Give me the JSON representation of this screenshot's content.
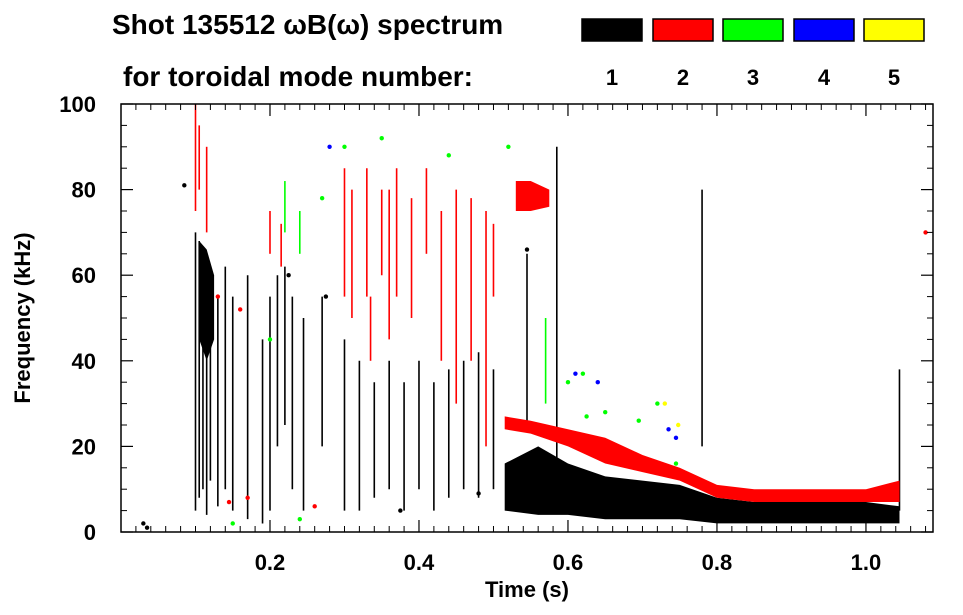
{
  "chart_data": {
    "type": "spectrogram",
    "title": "Shot 135512 ωB(ω) spectrum",
    "legend_caption": "for toroidal mode number:",
    "xlabel": "Time (s)",
    "ylabel": "Frequency (kHz)",
    "xlim": [
      0.0,
      1.09
    ],
    "ylim": [
      0,
      100
    ],
    "xticks": [
      0.2,
      0.4,
      0.6,
      0.8,
      1.0
    ],
    "xtick_labels": [
      "0.2",
      "0.4",
      "0.6",
      "0.8",
      "1.0"
    ],
    "yticks": [
      0,
      20,
      40,
      60,
      80,
      100
    ],
    "ytick_labels": [
      "0",
      "20",
      "40",
      "60",
      "80",
      "100"
    ],
    "legend": [
      {
        "label": "1",
        "color": "#000000"
      },
      {
        "label": "2",
        "color": "#ff0000"
      },
      {
        "label": "3",
        "color": "#00ff00"
      },
      {
        "label": "4",
        "color": "#0000ff"
      },
      {
        "label": "5",
        "color": "#ffff00"
      }
    ],
    "modes": [
      {
        "n": 1,
        "color": "#000000",
        "bands": [
          {
            "t": [
              0.515,
              0.56,
              0.6,
              0.65,
              0.7,
              0.75,
              0.8,
              0.85,
              0.9,
              0.95,
              1.0,
              1.045
            ],
            "f_low": [
              5,
              4,
              4,
              3,
              3,
              3,
              2,
              2,
              2,
              2,
              2,
              2
            ],
            "f_high": [
              16,
              20,
              16,
              13,
              12,
              11,
              8,
              7,
              7,
              7,
              7,
              6
            ]
          },
          {
            "t": [
              0.105,
              0.115,
              0.125
            ],
            "f_low": [
              45,
              40,
              45
            ],
            "f_high": [
              68,
              66,
              60
            ]
          }
        ],
        "streaks": [
          {
            "t": 0.1,
            "f": [
              5,
              70
            ]
          },
          {
            "t": 0.105,
            "f": [
              8,
              68
            ]
          },
          {
            "t": 0.11,
            "f": [
              10,
              66
            ]
          },
          {
            "t": 0.115,
            "f": [
              4,
              64
            ]
          },
          {
            "t": 0.12,
            "f": [
              12,
              60
            ]
          },
          {
            "t": 0.13,
            "f": [
              6,
              55
            ]
          },
          {
            "t": 0.14,
            "f": [
              10,
              62
            ]
          },
          {
            "t": 0.15,
            "f": [
              5,
              55
            ]
          },
          {
            "t": 0.17,
            "f": [
              3,
              60
            ]
          },
          {
            "t": 0.19,
            "f": [
              2,
              45
            ]
          },
          {
            "t": 0.2,
            "f": [
              5,
              55
            ]
          },
          {
            "t": 0.21,
            "f": [
              20,
              60
            ]
          },
          {
            "t": 0.22,
            "f": [
              25,
              62
            ]
          },
          {
            "t": 0.23,
            "f": [
              10,
              55
            ]
          },
          {
            "t": 0.245,
            "f": [
              5,
              50
            ]
          },
          {
            "t": 0.27,
            "f": [
              20,
              55
            ]
          },
          {
            "t": 0.3,
            "f": [
              5,
              45
            ]
          },
          {
            "t": 0.32,
            "f": [
              5,
              40
            ]
          },
          {
            "t": 0.34,
            "f": [
              8,
              35
            ]
          },
          {
            "t": 0.36,
            "f": [
              10,
              40
            ]
          },
          {
            "t": 0.38,
            "f": [
              5,
              35
            ]
          },
          {
            "t": 0.4,
            "f": [
              10,
              40
            ]
          },
          {
            "t": 0.42,
            "f": [
              5,
              35
            ]
          },
          {
            "t": 0.44,
            "f": [
              8,
              38
            ]
          },
          {
            "t": 0.46,
            "f": [
              10,
              40
            ]
          },
          {
            "t": 0.48,
            "f": [
              8,
              42
            ]
          },
          {
            "t": 0.5,
            "f": [
              10,
              38
            ]
          },
          {
            "t": 0.545,
            "f": [
              25,
              65
            ]
          },
          {
            "t": 0.585,
            "f": [
              15,
              90
            ]
          },
          {
            "t": 0.78,
            "f": [
              20,
              80
            ]
          },
          {
            "t": 1.045,
            "f": [
              5,
              38
            ]
          }
        ],
        "blobs": [
          {
            "t": 0.03,
            "f": 2
          },
          {
            "t": 0.035,
            "f": 1
          },
          {
            "t": 0.085,
            "f": 81
          },
          {
            "t": 0.225,
            "f": 60
          },
          {
            "t": 0.275,
            "f": 55
          },
          {
            "t": 0.375,
            "f": 5
          },
          {
            "t": 0.48,
            "f": 9
          },
          {
            "t": 0.545,
            "f": 66
          }
        ]
      },
      {
        "n": 2,
        "color": "#ff0000",
        "bands": [
          {
            "t": [
              0.53,
              0.55,
              0.575
            ],
            "f_low": [
              75,
              75,
              76
            ],
            "f_high": [
              82,
              82,
              80
            ]
          },
          {
            "t": [
              0.515,
              0.55,
              0.6,
              0.65,
              0.7,
              0.75,
              0.8,
              0.85,
              0.9,
              0.95,
              1.0,
              1.045
            ],
            "f_low": [
              24,
              23,
              20,
              16,
              14,
              12,
              8,
              7,
              7,
              7,
              7,
              7
            ],
            "f_high": [
              27,
              26,
              24,
              22,
              18,
              15,
              11,
              10,
              10,
              10,
              10,
              12
            ]
          }
        ],
        "streaks": [
          {
            "t": 0.1,
            "f": [
              75,
              100
            ]
          },
          {
            "t": 0.105,
            "f": [
              80,
              95
            ]
          },
          {
            "t": 0.115,
            "f": [
              70,
              90
            ]
          },
          {
            "t": 0.2,
            "f": [
              65,
              75
            ]
          },
          {
            "t": 0.215,
            "f": [
              62,
              72
            ]
          },
          {
            "t": 0.3,
            "f": [
              55,
              85
            ]
          },
          {
            "t": 0.31,
            "f": [
              50,
              80
            ]
          },
          {
            "t": 0.33,
            "f": [
              55,
              85
            ]
          },
          {
            "t": 0.35,
            "f": [
              60,
              80
            ]
          },
          {
            "t": 0.36,
            "f": [
              45,
              80
            ]
          },
          {
            "t": 0.37,
            "f": [
              55,
              85
            ]
          },
          {
            "t": 0.39,
            "f": [
              50,
              78
            ]
          },
          {
            "t": 0.41,
            "f": [
              65,
              85
            ]
          },
          {
            "t": 0.43,
            "f": [
              40,
              75
            ]
          },
          {
            "t": 0.45,
            "f": [
              30,
              80
            ]
          },
          {
            "t": 0.47,
            "f": [
              40,
              78
            ]
          },
          {
            "t": 0.49,
            "f": [
              20,
              75
            ]
          },
          {
            "t": 0.5,
            "f": [
              55,
              72
            ]
          },
          {
            "t": 0.335,
            "f": [
              40,
              55
            ]
          }
        ],
        "blobs": [
          {
            "t": 0.13,
            "f": 55
          },
          {
            "t": 0.16,
            "f": 52
          },
          {
            "t": 0.145,
            "f": 7
          },
          {
            "t": 0.17,
            "f": 8
          },
          {
            "t": 0.26,
            "f": 6
          },
          {
            "t": 1.08,
            "f": 70
          }
        ]
      },
      {
        "n": 3,
        "color": "#00ff00",
        "bands": [],
        "streaks": [
          {
            "t": 0.22,
            "f": [
              70,
              82
            ]
          },
          {
            "t": 0.24,
            "f": [
              65,
              75
            ]
          },
          {
            "t": 0.57,
            "f": [
              30,
              50
            ]
          }
        ],
        "blobs": [
          {
            "t": 0.27,
            "f": 78
          },
          {
            "t": 0.3,
            "f": 90
          },
          {
            "t": 0.35,
            "f": 92
          },
          {
            "t": 0.44,
            "f": 88
          },
          {
            "t": 0.52,
            "f": 90
          },
          {
            "t": 0.625,
            "f": 27
          },
          {
            "t": 0.65,
            "f": 28
          },
          {
            "t": 0.695,
            "f": 26
          },
          {
            "t": 0.745,
            "f": 16
          },
          {
            "t": 0.62,
            "f": 37
          },
          {
            "t": 0.15,
            "f": 2
          },
          {
            "t": 0.24,
            "f": 3
          },
          {
            "t": 0.2,
            "f": 45
          },
          {
            "t": 0.6,
            "f": 35
          },
          {
            "t": 0.72,
            "f": 30
          }
        ]
      },
      {
        "n": 4,
        "color": "#0000ff",
        "bands": [],
        "streaks": [],
        "blobs": [
          {
            "t": 0.61,
            "f": 37
          },
          {
            "t": 0.64,
            "f": 35
          },
          {
            "t": 0.735,
            "f": 24
          },
          {
            "t": 0.745,
            "f": 22
          },
          {
            "t": 0.28,
            "f": 90
          }
        ]
      },
      {
        "n": 5,
        "color": "#ffff00",
        "bands": [],
        "streaks": [],
        "blobs": [
          {
            "t": 0.73,
            "f": 30
          },
          {
            "t": 0.748,
            "f": 25
          }
        ]
      }
    ]
  }
}
